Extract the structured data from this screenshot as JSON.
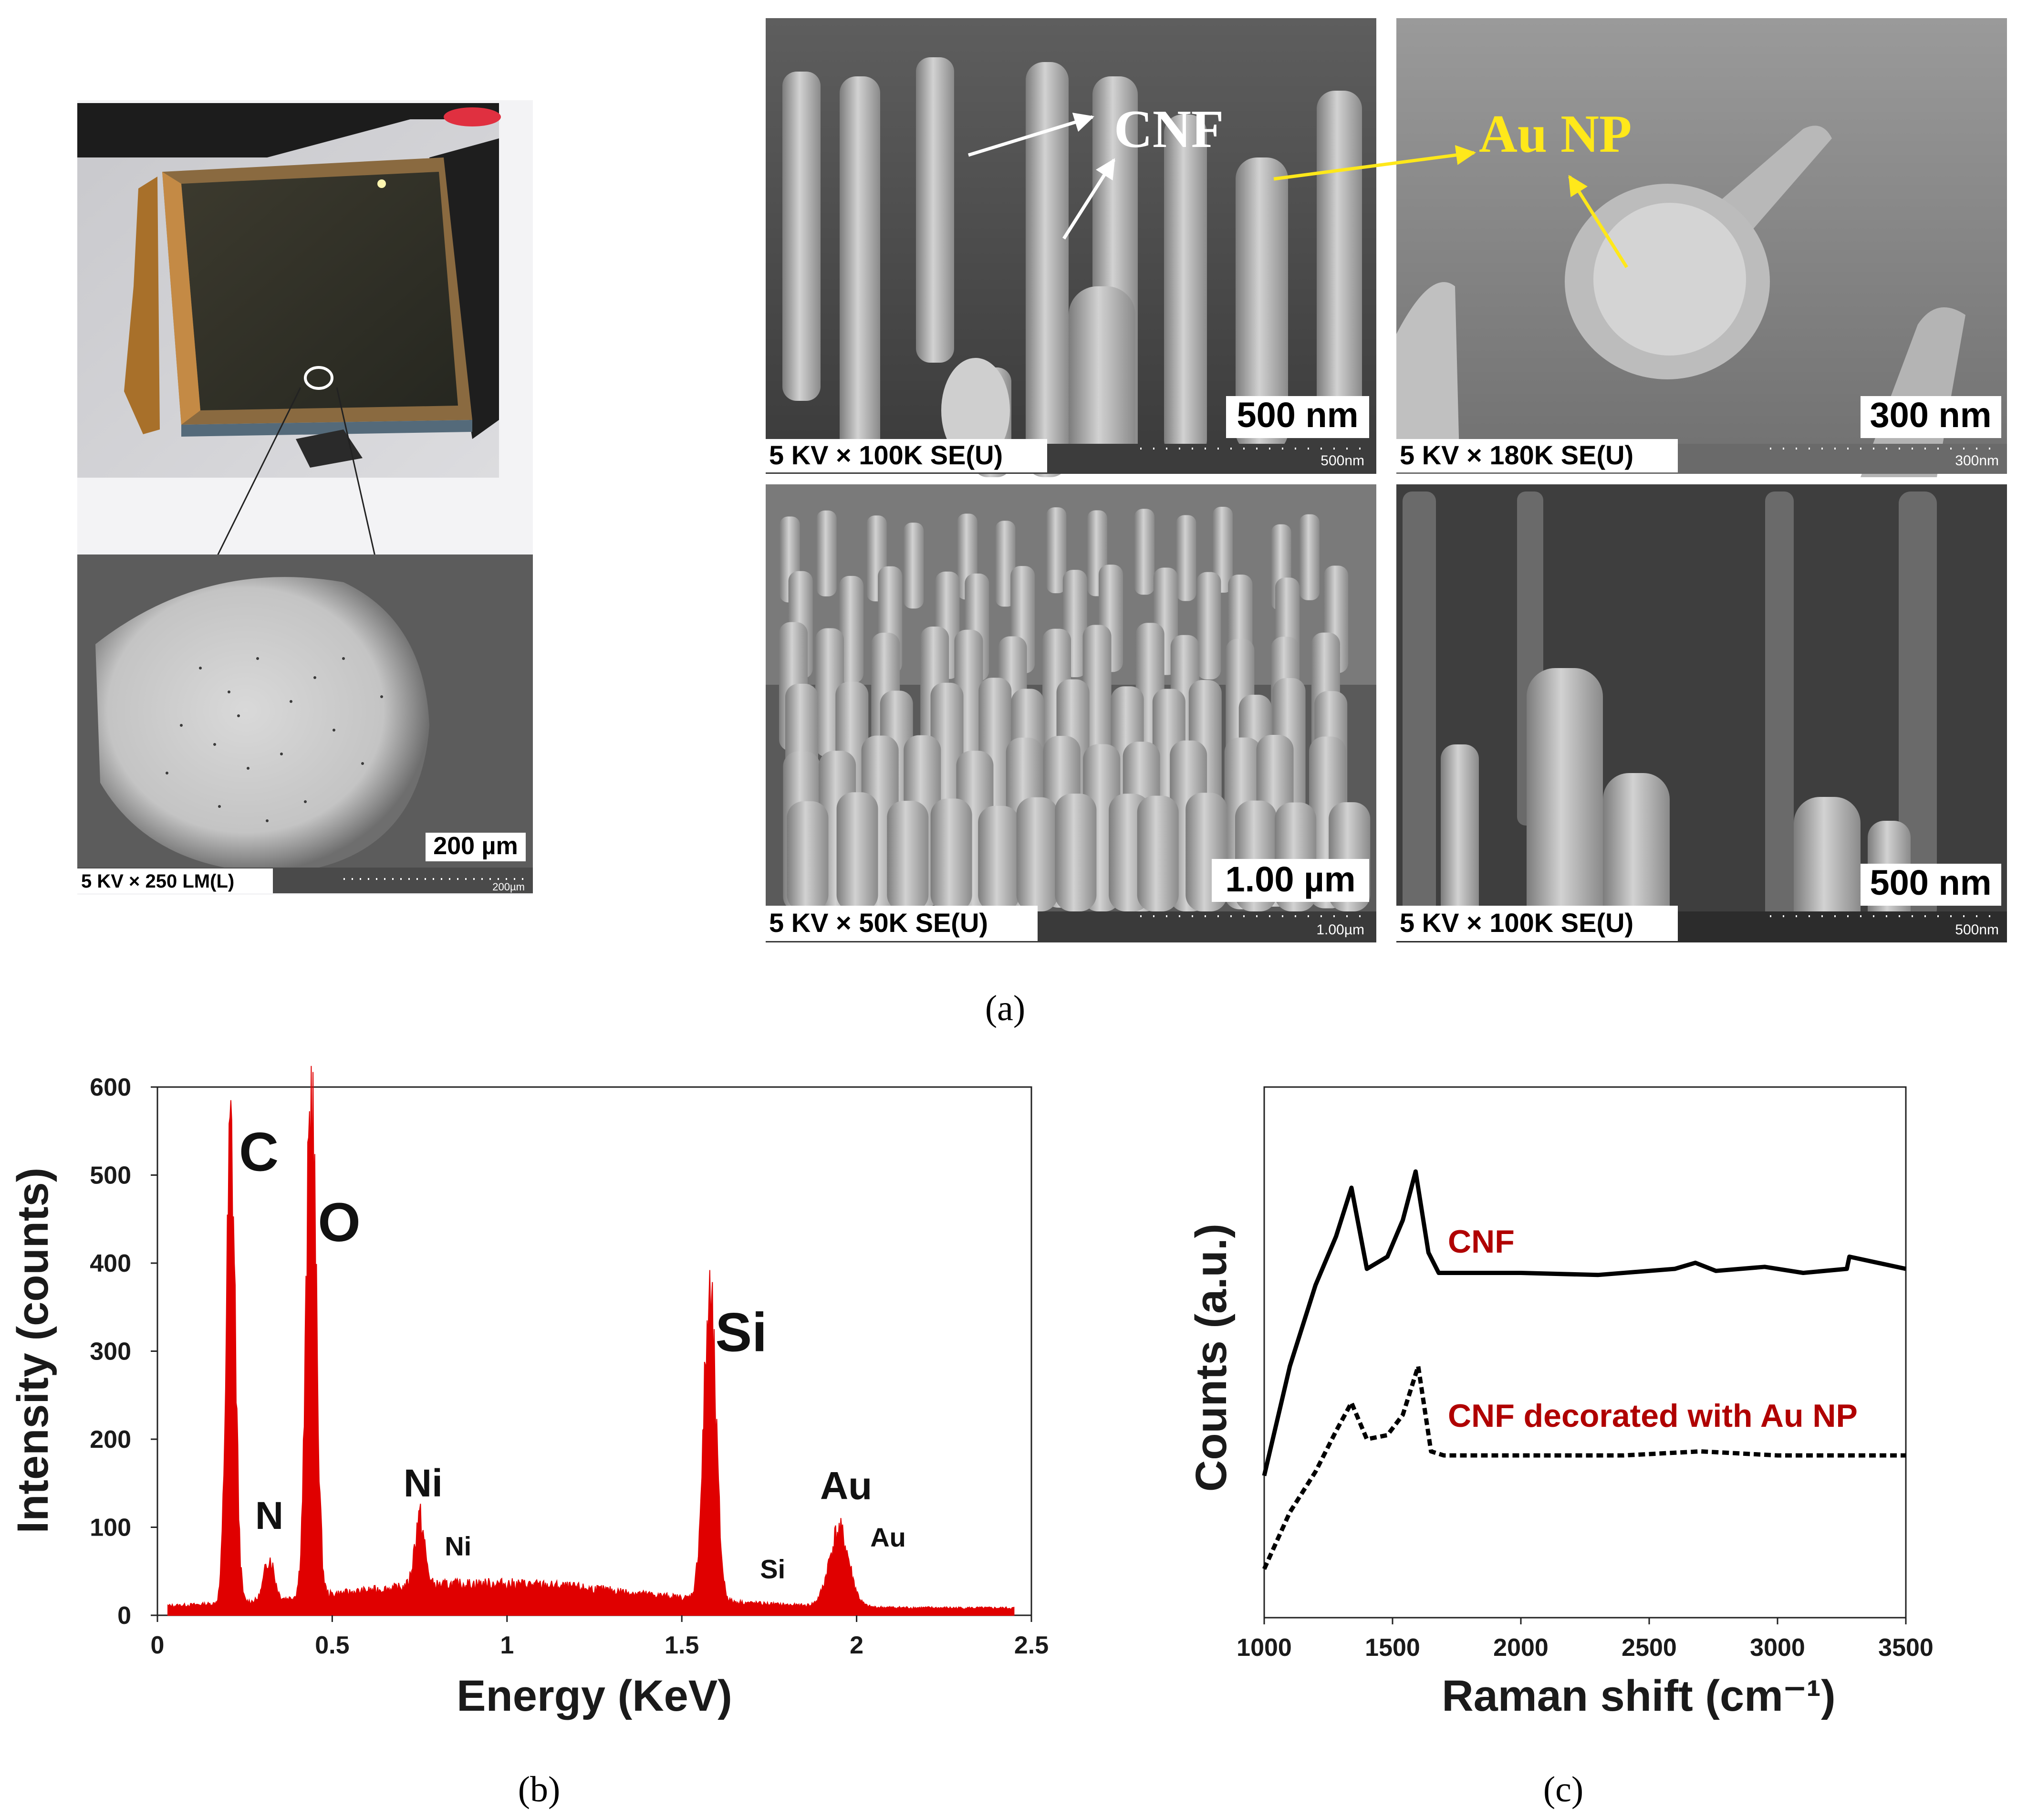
{
  "panel_a": {
    "caption": "(a)",
    "photo_bottom": {
      "footer": "5 KV × 250 LM(L)",
      "scale_label": "200 µm",
      "tiny_scale": "200µm"
    },
    "sem1": {
      "footer": "5 KV × 100K SE(U)",
      "scale_label": "500 nm",
      "tiny_scale": "500nm",
      "annotation": "CNF"
    },
    "sem2": {
      "footer": "5 KV × 180K SE(U)",
      "scale_label": "300 nm",
      "tiny_scale": "300nm",
      "annotation": "Au NP"
    },
    "sem3": {
      "footer": "5 KV × 50K SE(U)",
      "scale_label": "1.00 µm",
      "tiny_scale": "1.00µm"
    },
    "sem4": {
      "footer": "5 KV × 100K SE(U)",
      "scale_label": "500 nm",
      "tiny_scale": "500nm"
    }
  },
  "panel_b": {
    "caption": "(b)",
    "chart_data": {
      "type": "area",
      "xlabel": "Energy (KeV)",
      "ylabel": "Intensity (counts)",
      "xlim": [
        0,
        2.5
      ],
      "ylim": [
        0,
        600
      ],
      "xticks": [
        "0",
        "0.5",
        "1",
        "1.5",
        "2",
        "2.5"
      ],
      "yticks": [
        "0",
        "100",
        "200",
        "300",
        "400",
        "500",
        "600"
      ],
      "color": "#e00000",
      "peaks": [
        {
          "label": "C",
          "x": 0.21,
          "y": 540
        },
        {
          "label": "N",
          "x": 0.32,
          "y": 65
        },
        {
          "label": "O",
          "x": 0.44,
          "y": 585
        },
        {
          "label": "Ni",
          "x": 0.75,
          "y": 110
        },
        {
          "label": "Si",
          "x": 1.58,
          "y": 350
        },
        {
          "label": "Au",
          "x": 1.95,
          "y": 95
        }
      ],
      "annotations": [
        {
          "text": "C",
          "x": 0.29,
          "y": 505,
          "size": "large"
        },
        {
          "text": "O",
          "x": 0.52,
          "y": 425,
          "size": "large"
        },
        {
          "text": "Si",
          "x": 1.67,
          "y": 300,
          "size": "large"
        },
        {
          "text": "N",
          "x": 0.32,
          "y": 98,
          "size": "medium"
        },
        {
          "text": "Ni",
          "x": 0.76,
          "y": 135,
          "size": "medium"
        },
        {
          "text": "Au",
          "x": 1.97,
          "y": 132,
          "size": "medium"
        },
        {
          "text": "Ni",
          "x": 0.86,
          "y": 68,
          "size": "small"
        },
        {
          "text": "Si",
          "x": 1.76,
          "y": 42,
          "size": "small"
        },
        {
          "text": "Au",
          "x": 2.09,
          "y": 78,
          "size": "small"
        }
      ]
    }
  },
  "panel_c": {
    "caption": "(c)",
    "chart_data": {
      "type": "line",
      "xlabel": "Raman shift (cm⁻¹)",
      "ylabel": "Counts (a.u.)",
      "xlim": [
        1000,
        3500
      ],
      "xticks": [
        "1000",
        "1500",
        "2000",
        "2500",
        "3000",
        "3500"
      ],
      "series": [
        {
          "name": "CNF",
          "style": "solid",
          "color": "#000000",
          "x": [
            1000,
            1100,
            1200,
            1280,
            1340,
            1400,
            1480,
            1540,
            1590,
            1640,
            1680,
            1800,
            2000,
            2300,
            2600,
            2680,
            2760,
            2950,
            3100,
            3270,
            3280,
            3500
          ],
          "y": [
            0.15,
            0.42,
            0.62,
            0.74,
            0.86,
            0.66,
            0.69,
            0.78,
            0.9,
            0.7,
            0.65,
            0.65,
            0.65,
            0.645,
            0.66,
            0.675,
            0.655,
            0.665,
            0.65,
            0.66,
            0.69,
            0.66
          ],
          "label_color": "#b00000"
        },
        {
          "name": "CNF decorated with Au NP",
          "style": "dashed",
          "color": "#000000",
          "x": [
            1000,
            1100,
            1200,
            1280,
            1340,
            1400,
            1480,
            1540,
            1600,
            1650,
            1700,
            2000,
            2400,
            2700,
            3000,
            3500
          ],
          "y": [
            -0.08,
            0.06,
            0.16,
            0.26,
            0.33,
            0.24,
            0.25,
            0.3,
            0.42,
            0.21,
            0.2,
            0.2,
            0.2,
            0.21,
            0.2,
            0.2
          ],
          "label_color": "#b00000"
        }
      ]
    }
  }
}
